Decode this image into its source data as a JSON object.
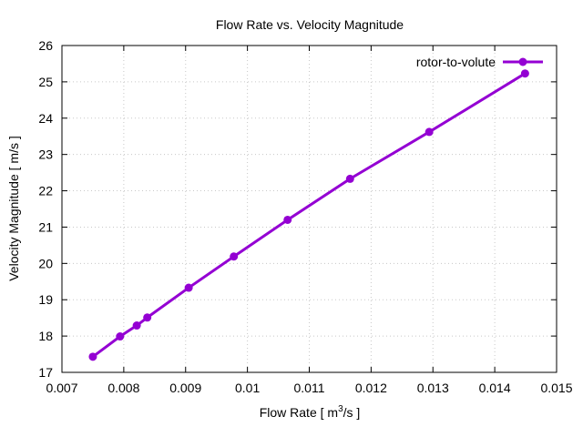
{
  "chart_data": {
    "type": "line",
    "title": "Flow Rate vs. Velocity Magnitude",
    "xlabel_main": "Flow Rate [ m",
    "xlabel_sup": "3",
    "xlabel_tail": "/s ]",
    "ylabel": "Velocity Magnitude [ m/s ]",
    "xlim": [
      0.007,
      0.015
    ],
    "ylim": [
      17,
      26
    ],
    "xticks": [
      0.007,
      0.008,
      0.009,
      0.01,
      0.011,
      0.012,
      0.013,
      0.014,
      0.015
    ],
    "xtick_labels": [
      "0.007",
      "0.008",
      "0.009",
      "0.01",
      "0.011",
      "0.012",
      "0.013",
      "0.014",
      "0.015"
    ],
    "yticks": [
      17,
      18,
      19,
      20,
      21,
      22,
      23,
      24,
      25,
      26
    ],
    "ytick_labels": [
      "17",
      "18",
      "19",
      "20",
      "21",
      "22",
      "23",
      "24",
      "25",
      "26"
    ],
    "grid": true,
    "legend_position": "top-right",
    "series": [
      {
        "name": "rotor-to-volute",
        "color": "#9400d3",
        "x": [
          0.0075,
          0.00794,
          0.00821,
          0.00838,
          0.00905,
          0.00978,
          0.01065,
          0.01166,
          0.01294,
          0.01449
        ],
        "y": [
          17.43,
          17.99,
          18.29,
          18.51,
          19.33,
          20.19,
          21.2,
          22.33,
          23.62,
          25.23
        ]
      }
    ]
  }
}
